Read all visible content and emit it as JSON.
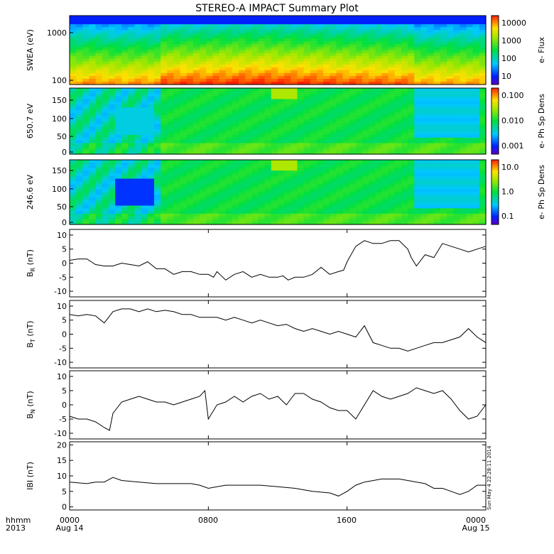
{
  "title": "STEREO-A IMPACT Summary Plot",
  "stamp": "Sun May  4 22:28:11 2014",
  "footer": {
    "left_line1": "hhmm",
    "left_line2": "2013",
    "x_tick_labels": [
      "0000",
      "0800",
      "1600",
      "0000"
    ],
    "date_labels": [
      "Aug 14",
      "Aug 15"
    ]
  },
  "chart_data": [
    {
      "type": "heatmap",
      "ylabel": "SWEA (eV)",
      "y_scale": "log",
      "ylim": [
        90,
        1900
      ],
      "y_ticks": [
        "1000",
        "100"
      ],
      "colorbar": {
        "label": "e- Flux",
        "ticks": [
          "10000",
          "1000",
          "100",
          "10"
        ]
      },
      "x_range_hours": [
        0,
        24
      ],
      "level_profile_x_hours": [
        0,
        1.5,
        2.5,
        4,
        5.1,
        5.2,
        8,
        9,
        11,
        13,
        16,
        18,
        19.8,
        20,
        24
      ],
      "level_profile": [
        0.55,
        0.62,
        0.55,
        0.6,
        0.6,
        0.8,
        0.82,
        0.85,
        0.88,
        0.85,
        0.78,
        0.75,
        0.72,
        0.55,
        0.55
      ]
    },
    {
      "type": "heatmap",
      "ylabel": "650.7 eV",
      "ylim": [
        0,
        180
      ],
      "y_ticks": [
        "150",
        "100",
        "50",
        "0"
      ],
      "colorbar": {
        "label": "e- Ph Sp Dens",
        "ticks": [
          "0.100",
          "0.010",
          "0.001"
        ]
      }
    },
    {
      "type": "heatmap",
      "ylabel": "246.6 eV",
      "ylim": [
        0,
        180
      ],
      "y_ticks": [
        "150",
        "100",
        "50",
        "0"
      ],
      "colorbar": {
        "label": "e- Ph Sp Dens",
        "ticks": [
          "10.0",
          "1.0",
          "0.1"
        ]
      }
    },
    {
      "type": "line",
      "ylabel": "BR (nT)",
      "ylabel_main": "B",
      "ylabel_sub": "R",
      "ylabel_unit": "(nT)",
      "ylim": [
        -12,
        12
      ],
      "y_ticks": [
        10,
        5,
        0,
        -5,
        -10
      ],
      "x_hours": [
        0,
        0.5,
        1,
        1.5,
        2,
        2.5,
        3,
        3.5,
        4,
        4.5,
        5,
        5.5,
        6,
        6.5,
        7,
        7.5,
        8,
        8.3,
        8.5,
        9,
        9.5,
        10,
        10.5,
        11,
        11.5,
        12,
        12.3,
        12.6,
        13,
        13.5,
        14,
        14.5,
        15,
        15.5,
        15.8,
        16,
        16.5,
        17,
        17.5,
        18,
        18.5,
        19,
        19.5,
        19.7,
        20,
        20.5,
        21,
        21.5,
        22,
        22.5,
        23,
        23.5,
        24
      ],
      "values": [
        1,
        1.5,
        1.5,
        -0.5,
        -1,
        -1,
        0,
        -0.5,
        -1,
        0.5,
        -2,
        -2,
        -4,
        -3,
        -3,
        -4,
        -4,
        -5,
        -3,
        -6,
        -4,
        -3,
        -5,
        -4,
        -5,
        -5,
        -4.5,
        -6,
        -5,
        -5,
        -4,
        -1.5,
        -4,
        -3,
        -2.5,
        0.5,
        6,
        8,
        7,
        7,
        8,
        8,
        5,
        2,
        -1,
        3,
        2,
        7,
        6,
        5,
        4,
        5,
        6
      ]
    },
    {
      "type": "line",
      "ylabel": "BT (nT)",
      "ylabel_main": "B",
      "ylabel_sub": "T",
      "ylabel_unit": "(nT)",
      "ylim": [
        -12,
        12
      ],
      "y_ticks": [
        10,
        5,
        0,
        -5,
        -10
      ],
      "x_hours": [
        0,
        0.5,
        1,
        1.5,
        2,
        2.5,
        3,
        3.5,
        4,
        4.5,
        5,
        5.5,
        6,
        6.5,
        7,
        7.5,
        8,
        8.5,
        9,
        9.5,
        10,
        10.5,
        11,
        11.5,
        12,
        12.5,
        13,
        13.5,
        14,
        14.5,
        15,
        15.5,
        16,
        16.5,
        17,
        17.5,
        18,
        18.5,
        19,
        19.5,
        20,
        20.5,
        21,
        21.5,
        22,
        22.5,
        23,
        23.5,
        24
      ],
      "values": [
        7,
        6.5,
        7,
        6.5,
        4,
        8,
        9,
        9,
        8,
        9,
        8,
        8.5,
        8,
        7,
        7,
        6,
        6,
        6,
        5,
        6,
        5,
        4,
        5,
        4,
        3,
        3.5,
        2,
        1,
        2,
        1,
        0,
        1,
        0,
        -1,
        3,
        -3,
        -4,
        -5,
        -5,
        -6,
        -5,
        -4,
        -3,
        -3,
        -2,
        -1,
        2,
        -1,
        -3
      ]
    },
    {
      "type": "line",
      "ylabel": "BN (nT)",
      "ylabel_main": "B",
      "ylabel_sub": "N",
      "ylabel_unit": "(nT)",
      "ylim": [
        -12,
        12
      ],
      "y_ticks": [
        10,
        5,
        0,
        -5,
        -10
      ],
      "x_hours": [
        0,
        0.5,
        1,
        1.5,
        2,
        2.3,
        2.5,
        3,
        3.5,
        4,
        4.5,
        5,
        5.5,
        6,
        6.5,
        7,
        7.5,
        7.8,
        8,
        8.5,
        9,
        9.5,
        10,
        10.5,
        11,
        11.5,
        12,
        12.5,
        13,
        13.5,
        14,
        14.5,
        15,
        15.5,
        16,
        16.5,
        17,
        17.5,
        18,
        18.5,
        19,
        19.5,
        20,
        20.5,
        21,
        21.5,
        22,
        22.5,
        23,
        23.5,
        24
      ],
      "values": [
        -4,
        -5,
        -5,
        -6,
        -8,
        -9,
        -3,
        1,
        2,
        3,
        2,
        1,
        1,
        0,
        1,
        2,
        3,
        5,
        -5,
        0,
        1,
        3,
        1,
        3,
        4,
        2,
        3,
        0,
        4,
        4,
        2,
        1,
        -1,
        -2,
        -2,
        -5,
        0,
        5,
        3,
        2,
        3,
        4,
        6,
        5,
        4,
        5,
        2,
        -2,
        -5,
        -4,
        0
      ]
    },
    {
      "type": "line",
      "ylabel": "IBI (nT)",
      "ylim": [
        -1,
        21
      ],
      "y_ticks": [
        20,
        15,
        10,
        5,
        0
      ],
      "x_hours": [
        0,
        1,
        1.5,
        2,
        2.5,
        3,
        4,
        5,
        6,
        7,
        7.5,
        8,
        9,
        10,
        11,
        12,
        13,
        14,
        15,
        15.5,
        16,
        16.5,
        17,
        18,
        19,
        19.5,
        20,
        20.5,
        21,
        21.5,
        22,
        22.5,
        23,
        23.5,
        24
      ],
      "values": [
        8,
        7.5,
        8,
        8,
        9.5,
        8.5,
        8,
        7.5,
        7.5,
        7.5,
        7,
        6,
        7,
        7,
        7,
        6.5,
        6,
        5,
        4.5,
        3.5,
        5,
        7,
        8,
        9,
        9,
        8.5,
        8,
        7.5,
        6,
        6,
        5,
        4,
        5,
        7,
        7
      ]
    }
  ]
}
